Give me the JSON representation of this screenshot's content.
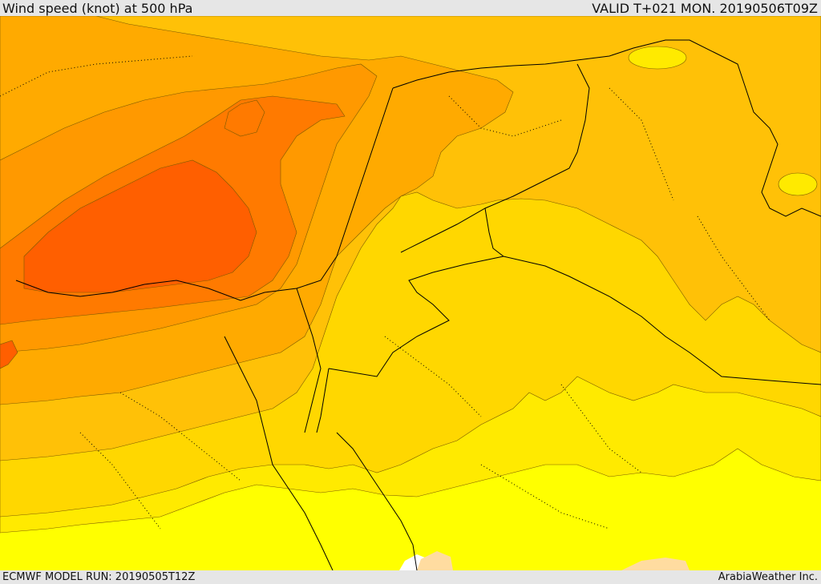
{
  "header": {
    "title": "Wind speed (knot) at 500 hPa",
    "valid_time": "VALID T+021 MON. 20190506T09Z"
  },
  "footer": {
    "model_run": "ECMWF MODEL RUN: 20190505T12Z",
    "credit": "ArabiaWeather Inc."
  },
  "map": {
    "colors": {
      "band_1": "#ffff00",
      "band_2": "#ffea00",
      "band_3": "#ffd700",
      "band_4": "#ffc107",
      "band_5": "#ffaa00",
      "band_6": "#ff9900",
      "band_7": "#ff7a00",
      "band_8": "#ff5f00",
      "calm": "#ffffff",
      "low": "#ffdca0",
      "border": "#000000"
    }
  }
}
